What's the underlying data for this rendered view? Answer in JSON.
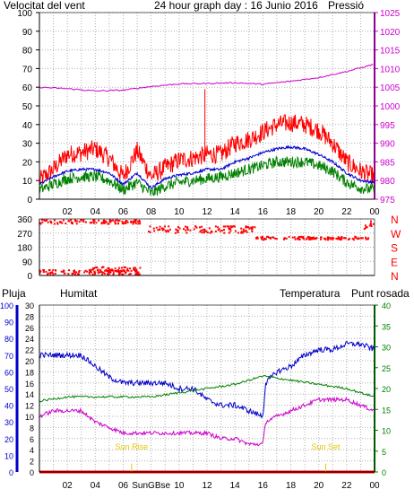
{
  "colors": {
    "wind_speed": "#ff0000",
    "wind_avg": "#0000cc",
    "wind_gust_low": "#008000",
    "pressure": "#cc00cc",
    "direction": "#ff0000",
    "rain": "#ff0000",
    "humidity": "#0000cc",
    "temperature": "#008000",
    "dewpoint": "#cc00cc",
    "sun": "#e6c800",
    "grid": "#b0b0b0",
    "frame": "#000000"
  },
  "chart_data": [
    {
      "type": "line",
      "title": "24 hour graph day : 16 Junio 2016",
      "left_label": "Velocitat del vent",
      "right_label": "Pressió",
      "x_tick_labels": [
        "02",
        "04",
        "06",
        "08",
        "10",
        "12",
        "14",
        "16",
        "18",
        "20",
        "22",
        "00"
      ],
      "ylim_left": [
        0,
        100
      ],
      "y_ticks_left": [
        "0",
        "10",
        "20",
        "30",
        "40",
        "50",
        "60",
        "70",
        "80",
        "90",
        "100"
      ],
      "ylim_right": [
        975,
        1025
      ],
      "y_ticks_right": [
        "975",
        "980",
        "985",
        "990",
        "995",
        "1000",
        "1005",
        "1010",
        "1015",
        "1020",
        "1025"
      ],
      "x_range_hours": [
        0,
        24
      ],
      "series": [
        {
          "key": "gust",
          "axis": "left",
          "x": [
            0,
            1,
            2,
            3,
            4,
            5,
            6,
            7,
            8,
            9,
            10,
            11,
            12,
            13,
            14,
            15,
            16,
            17,
            18,
            19,
            20,
            21,
            22,
            23,
            24
          ],
          "values": [
            10,
            16,
            24,
            25,
            27,
            22,
            12,
            26,
            12,
            17,
            21,
            22,
            24,
            24,
            30,
            32,
            36,
            40,
            41,
            40,
            37,
            30,
            20,
            15,
            12
          ]
        },
        {
          "key": "avg",
          "axis": "left",
          "x": [
            0,
            1,
            2,
            3,
            4,
            5,
            6,
            7,
            8,
            9,
            10,
            11,
            12,
            13,
            14,
            15,
            16,
            17,
            18,
            19,
            20,
            21,
            22,
            23,
            24
          ],
          "values": [
            8,
            12,
            15,
            16,
            16,
            14,
            8,
            14,
            6,
            11,
            13,
            14,
            16,
            16,
            20,
            22,
            25,
            27,
            28,
            27,
            24,
            20,
            14,
            10,
            9
          ]
        },
        {
          "key": "low",
          "axis": "left",
          "x": [
            0,
            1,
            2,
            3,
            4,
            5,
            6,
            7,
            8,
            9,
            10,
            11,
            12,
            13,
            14,
            15,
            16,
            17,
            18,
            19,
            20,
            21,
            22,
            23,
            24
          ],
          "values": [
            5,
            8,
            11,
            12,
            12,
            10,
            5,
            9,
            3,
            7,
            9,
            10,
            11,
            12,
            14,
            16,
            18,
            20,
            20,
            20,
            18,
            15,
            9,
            6,
            5
          ]
        },
        {
          "key": "pressure",
          "axis": "right",
          "x": [
            0,
            2,
            4,
            6,
            8,
            10,
            12,
            14,
            16,
            18,
            20,
            22,
            24
          ],
          "values": [
            1005,
            1004.6,
            1004,
            1004.2,
            1005.2,
            1005.9,
            1006,
            1006.2,
            1005.8,
            1006.6,
            1007.6,
            1009.2,
            1011.2
          ]
        }
      ],
      "peak": {
        "x": 11.85,
        "value": 59
      }
    },
    {
      "type": "scatter",
      "ylim": [
        0,
        360
      ],
      "y_ticks": [
        "0",
        "90",
        "180",
        "270",
        "360"
      ],
      "compass_labels": [
        "N",
        "W",
        "S",
        "E",
        "N"
      ],
      "x_range_hours": [
        0,
        24
      ],
      "clusters": [
        {
          "x_start": 0.0,
          "x_end": 7.2,
          "y_center": 342,
          "spread": 14
        },
        {
          "x_start": 0.0,
          "x_end": 7.2,
          "y_center": 20,
          "spread": 15
        },
        {
          "x_start": 3.5,
          "x_end": 7.3,
          "y_center": 30,
          "spread": 25
        },
        {
          "x_start": 7.8,
          "x_end": 15.5,
          "y_center": 292,
          "spread": 22
        },
        {
          "x_start": 15.5,
          "x_end": 23.6,
          "y_center": 237,
          "spread": 10
        },
        {
          "x_start": 23.2,
          "x_end": 24.0,
          "y_center": 320,
          "spread": 30
        }
      ]
    },
    {
      "type": "line",
      "legend": {
        "rain": "Pluja",
        "humidity": "Humitat",
        "temperature": "Temperatura",
        "dewpoint": "Punt rosada"
      },
      "x_tick_labels": [
        "02",
        "04",
        "06",
        "08",
        "10",
        "12",
        "14",
        "16",
        "18",
        "20",
        "22",
        "00"
      ],
      "x_tick_special": "SunGBse",
      "sun_rise_label": "Sun Rise",
      "sun_set_label": "Sun Set",
      "sun_rise_hour": 6.6,
      "sun_set_hour": 20.5,
      "ylim_rain": [
        0,
        100
      ],
      "y_ticks_rain": [
        "0",
        "10",
        "20",
        "30",
        "40",
        "50",
        "60",
        "70",
        "80",
        "90",
        "100"
      ],
      "ylim_humidity": [
        0,
        30
      ],
      "y_ticks_humidity": [
        "0",
        "2",
        "4",
        "6",
        "8",
        "10",
        "12",
        "14",
        "16",
        "18",
        "20",
        "22",
        "24",
        "26",
        "28",
        "30"
      ],
      "ylim_temperature": [
        0,
        40
      ],
      "y_ticks_temperature": [
        "0",
        "5",
        "10",
        "15",
        "20",
        "25",
        "30",
        "35",
        "40"
      ],
      "x_range_hours": [
        0,
        24
      ],
      "series": [
        {
          "key": "humidity",
          "x": [
            0,
            1,
            2,
            3,
            4,
            5,
            6,
            7,
            8,
            9,
            10,
            11,
            12,
            13,
            14,
            15,
            16,
            16.2,
            17,
            18,
            19,
            20,
            21,
            22,
            23,
            24
          ],
          "values": [
            21,
            21,
            21,
            21,
            19,
            17,
            16,
            16,
            16,
            16,
            15,
            15,
            13,
            12,
            12,
            11,
            10,
            16,
            18,
            19,
            21,
            22,
            22,
            23,
            23,
            22
          ]
        },
        {
          "key": "temperature",
          "x": [
            0,
            2,
            4,
            6,
            8,
            10,
            12,
            14,
            16,
            18,
            20,
            22,
            24
          ],
          "values": [
            17,
            18,
            18,
            18,
            18,
            19,
            20,
            21,
            23,
            22,
            21,
            20,
            18
          ]
        },
        {
          "key": "dewpoint",
          "x": [
            0,
            1,
            2,
            3,
            4,
            5,
            6,
            7,
            8,
            9,
            10,
            11,
            12,
            13,
            14,
            15,
            16,
            16.2,
            17,
            18,
            19,
            20,
            21,
            22,
            23,
            24
          ],
          "values": [
            10,
            11,
            11,
            11,
            9,
            8,
            7,
            7,
            7,
            7,
            7,
            7,
            7,
            6,
            6,
            5,
            5,
            9,
            10,
            11,
            12,
            13,
            13,
            13,
            12,
            11
          ]
        },
        {
          "key": "rain",
          "x": [
            0,
            24
          ],
          "values": [
            0,
            0
          ]
        }
      ]
    }
  ]
}
